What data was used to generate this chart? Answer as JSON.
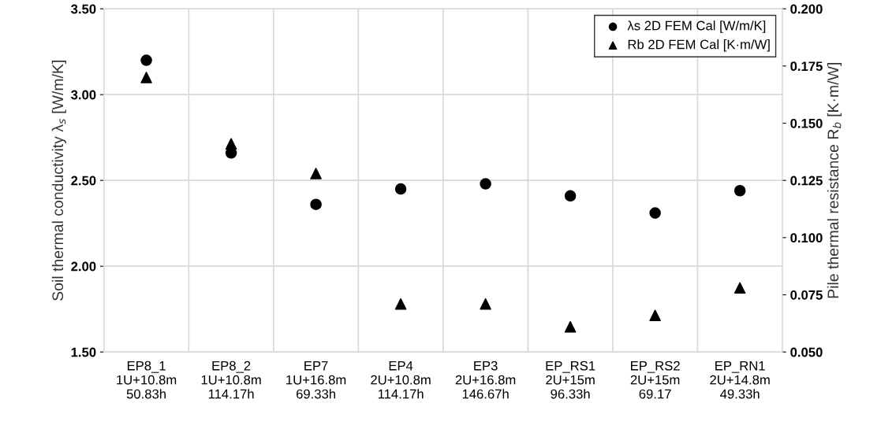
{
  "chart_data": {
    "type": "scatter",
    "ylabel": "Soil thermal conductivity λ$_{s}$ [W/m/K]",
    "y2label": "Pile thermal resistance R$_{b}$ [K·m/W]",
    "categories": [
      "EP8_1\n1U+10.8m\n50.83h",
      "EP8_2\n1U+10.8m\n114.17h",
      "EP7\n1U+16.8m\n69.33h",
      "EP4\n2U+10.8m\n114.17h",
      "EP3\n2U+16.8m\n146.67h",
      "EP_RS1\n2U+15m\n96.33h",
      "EP_RS2\n2U+15m\n69.17",
      "EP_RN1\n2U+14.8m\n49.33h"
    ],
    "series": [
      {
        "name": "λs 2D FEM Cal [W/m/K]",
        "color": "#000000",
        "marker": "circle",
        "values": [
          3.2,
          2.66,
          2.36,
          2.45,
          2.48,
          2.41,
          2.31,
          2.44
        ]
      },
      {
        "name": "Rb 2D FEM Cal [K·m/W]",
        "color": "#000000",
        "marker": "triangle",
        "axis": "y2",
        "values": [
          0.17,
          0.141,
          0.128,
          0.071,
          0.071,
          0.061,
          0.066,
          0.078
        ]
      }
    ],
    "ylim": [
      1.5,
      3.5
    ],
    "yticks": [
      {
        "value": 1.5,
        "label": "1.50"
      },
      {
        "value": 2.0,
        "label": "2.00"
      },
      {
        "value": 2.5,
        "label": "2.50"
      },
      {
        "value": 3.0,
        "label": "3.00"
      },
      {
        "value": 3.5,
        "label": "3.50"
      }
    ],
    "y2lim": [
      0.05,
      0.2
    ],
    "y2ticks": [
      {
        "value": 0.05,
        "label": "0.050"
      },
      {
        "value": 0.075,
        "label": "0.075"
      },
      {
        "value": 0.1,
        "label": "0.100"
      },
      {
        "value": 0.125,
        "label": "0.125"
      },
      {
        "value": 0.15,
        "label": "0.150"
      },
      {
        "value": 0.175,
        "label": "0.175"
      },
      {
        "value": 0.2,
        "label": "0.200"
      }
    ],
    "grid": true,
    "legend": "top right"
  }
}
